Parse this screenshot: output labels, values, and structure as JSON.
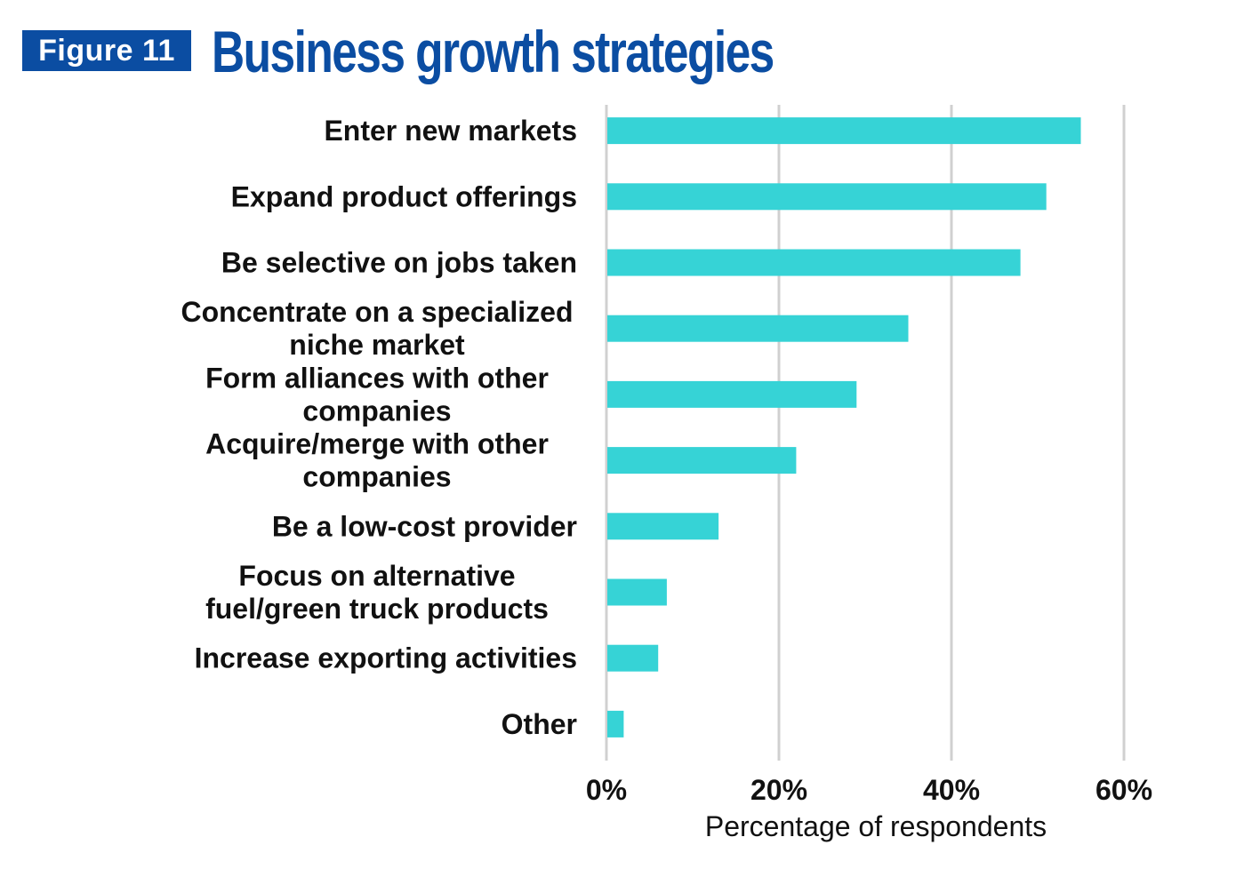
{
  "header": {
    "figure_label": "Figure 11",
    "title": "Business growth strategies"
  },
  "colors": {
    "bar": "#36d3d6",
    "grid": "#d0d0d0",
    "header_blue": "#0b4da2"
  },
  "chart_data": {
    "type": "bar",
    "orientation": "horizontal",
    "title": "Business growth strategies",
    "xlabel": "Percentage of respondents",
    "ylabel": "",
    "xlim": [
      0,
      60
    ],
    "xticks": [
      0,
      20,
      40,
      60
    ],
    "xtick_labels": [
      "0%",
      "20%",
      "40%",
      "60%"
    ],
    "grid": true,
    "categories": [
      [
        "Enter new markets"
      ],
      [
        "Expand product offerings"
      ],
      [
        "Be selective on jobs taken"
      ],
      [
        "Concentrate on a specialized",
        "niche market"
      ],
      [
        "Form alliances with other",
        "companies"
      ],
      [
        "Acquire/merge with other",
        "companies"
      ],
      [
        "Be a low-cost provider"
      ],
      [
        "Focus on alternative",
        "fuel/green truck products"
      ],
      [
        "Increase exporting activities"
      ],
      [
        "Other"
      ]
    ],
    "values": [
      55,
      51,
      48,
      35,
      29,
      22,
      13,
      7,
      6,
      2
    ]
  }
}
